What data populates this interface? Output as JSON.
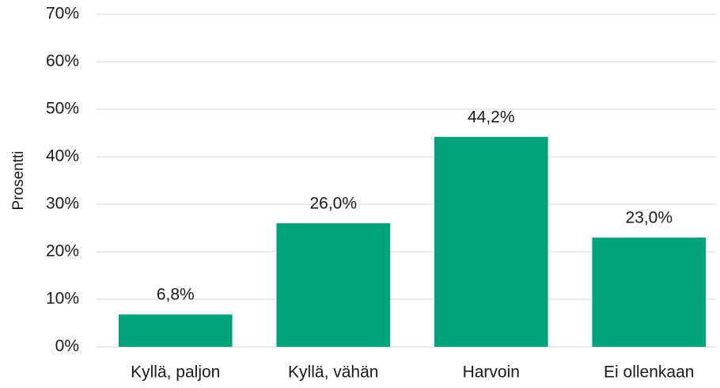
{
  "chart_data": {
    "type": "bar",
    "y_label": "Prosentti",
    "categories": [
      "Kyllä, paljon",
      "Kyllä, vähän",
      "Harvoin",
      "Ei ollenkaan"
    ],
    "values": [
      6.8,
      26.0,
      44.2,
      23.0
    ],
    "value_labels": [
      "6,8%",
      "26,0%",
      "44,2%",
      "23,0%"
    ],
    "color": "#00a27b",
    "ylim": [
      0,
      70
    ],
    "yticks": [
      {
        "value": 0,
        "label": "0%"
      },
      {
        "value": 10,
        "label": "10%"
      },
      {
        "value": 20,
        "label": "20%"
      },
      {
        "value": 30,
        "label": "30%"
      },
      {
        "value": 40,
        "label": "40%"
      },
      {
        "value": 50,
        "label": "50%"
      },
      {
        "value": 60,
        "label": "60%"
      },
      {
        "value": 70,
        "label": "70%"
      }
    ],
    "grid": true
  }
}
